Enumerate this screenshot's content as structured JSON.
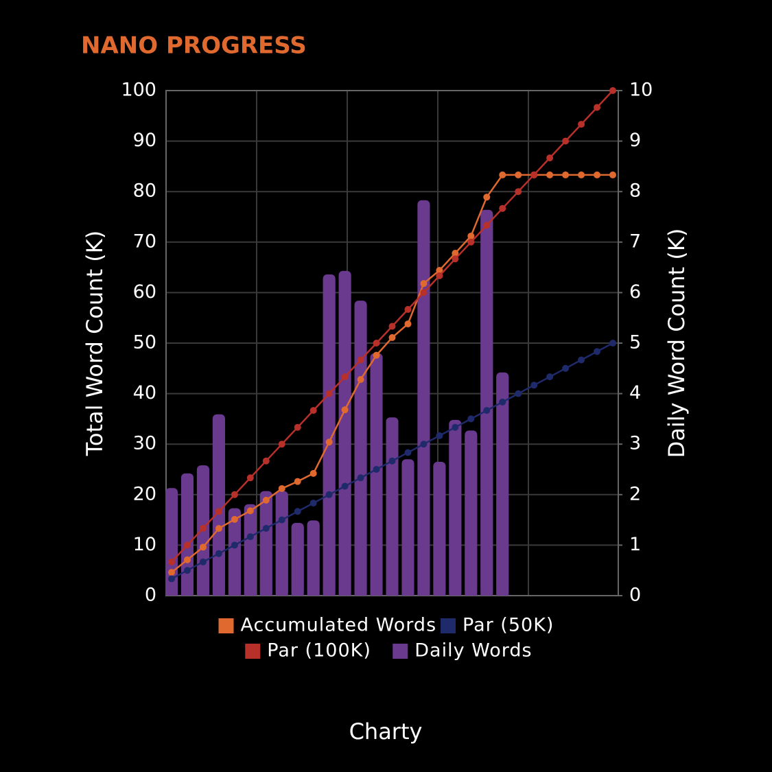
{
  "chart_data": {
    "type": "combo",
    "title": "NANO PROGRESS",
    "xlabel": "Charty",
    "ylabel": "Total Word Count (K)",
    "y2label": "Daily Word Count (K)",
    "categories": [
      null,
      null,
      null,
      null,
      null,
      null,
      null,
      null,
      null,
      null,
      null,
      null,
      null,
      null,
      null,
      null,
      null,
      null,
      null,
      null,
      null,
      null,
      null,
      null,
      null,
      null,
      null,
      null,
      null
    ],
    "ylim": [
      0,
      100
    ],
    "yticks": [
      0,
      10,
      20,
      30,
      40,
      50,
      60,
      70,
      80,
      90,
      100
    ],
    "y2lim": [
      0,
      10
    ],
    "y2ticks": [
      0,
      1,
      2,
      3,
      4,
      5,
      6,
      7,
      8,
      9,
      10
    ],
    "grid": true,
    "legend": "bottom",
    "series": [
      {
        "name": "Accumulated Words",
        "type": "line",
        "color": "#e0692f",
        "values": [
          4.6,
          7.1,
          9.6,
          13.3,
          15.1,
          16.8,
          18.9,
          21.2,
          22.6,
          24.2,
          30.4,
          36.8,
          42.8,
          47.6,
          51.1,
          53.8,
          61.8,
          64.4,
          67.8,
          71.2,
          78.9,
          83.3,
          83.3,
          83.3,
          83.3,
          83.3,
          83.3,
          83.3,
          83.3
        ]
      },
      {
        "name": "Par (50K)",
        "type": "line",
        "color": "#1f2a6b",
        "values": [
          3.33,
          5,
          6.67,
          8.33,
          10,
          11.67,
          13.33,
          15,
          16.67,
          18.33,
          20,
          21.67,
          23.33,
          25,
          26.67,
          28.33,
          30,
          31.67,
          33.33,
          35,
          36.67,
          38.33,
          40,
          41.67,
          43.33,
          45,
          46.67,
          48.33,
          50
        ]
      },
      {
        "name": "Par (100K)",
        "type": "line",
        "color": "#b8302a",
        "values": [
          6.67,
          10,
          13.33,
          16.67,
          20,
          23.33,
          26.67,
          30,
          33.33,
          36.67,
          40,
          43.33,
          46.67,
          50,
          53.33,
          56.67,
          60,
          63.33,
          66.67,
          70,
          73.33,
          76.67,
          80,
          83.33,
          86.67,
          90,
          93.33,
          96.67,
          100
        ]
      },
      {
        "name": "Daily Words",
        "type": "bar",
        "axis": "y2",
        "color": "#6a3a8f",
        "values": [
          2.13,
          2.42,
          2.58,
          3.59,
          1.73,
          1.81,
          2.07,
          2.07,
          1.44,
          1.49,
          6.36,
          6.43,
          5.84,
          4.8,
          3.53,
          2.7,
          7.83,
          2.65,
          3.48,
          3.27,
          7.64,
          4.42,
          null,
          null,
          null,
          null,
          null,
          null,
          null
        ]
      }
    ]
  }
}
